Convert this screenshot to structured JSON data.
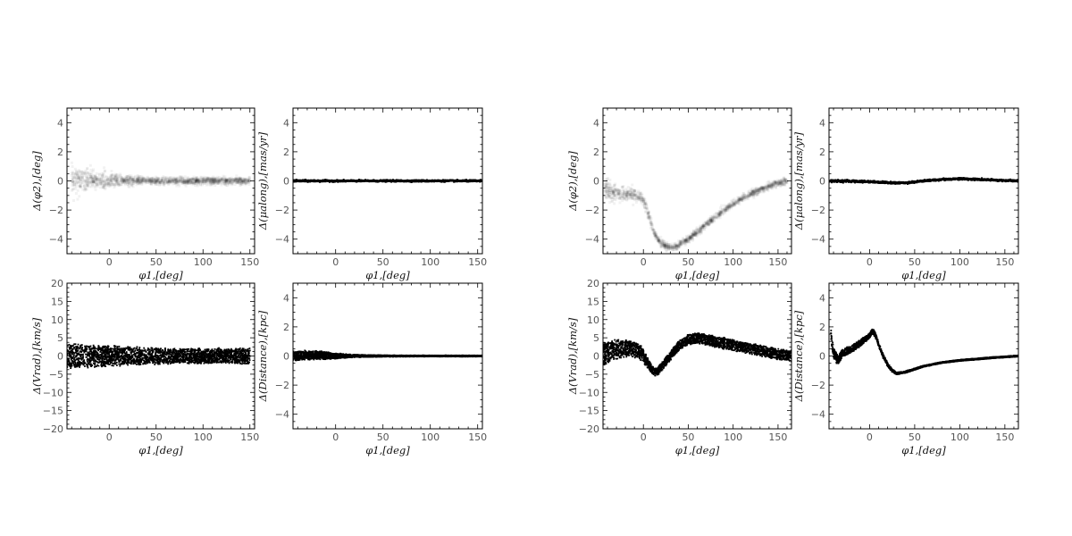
{
  "chart_data": [
    {
      "id": "L-phi2",
      "type": "scatter",
      "xlabel": "φ1,[deg]",
      "ylabel": "Δ(φ2),[deg]",
      "xlim": [
        -45,
        155
      ],
      "ylim": [
        -5,
        5
      ],
      "xticks": [
        0,
        50,
        100,
        150
      ],
      "yticks": [
        -4,
        -2,
        0,
        2,
        4
      ],
      "style": "density",
      "x": [
        -40,
        -30,
        -20,
        -10,
        0,
        10,
        20,
        30,
        40,
        50,
        60,
        70,
        80,
        90,
        100,
        110,
        120,
        130,
        140,
        150
      ],
      "y": [
        0.1,
        0.05,
        0.05,
        0.0,
        0.0,
        0.0,
        0.0,
        0.0,
        0.0,
        0.0,
        0.0,
        0.0,
        0.0,
        0.0,
        0.0,
        0.0,
        0.0,
        0.0,
        0.0,
        0.0
      ],
      "spread": [
        0.7,
        0.65,
        0.55,
        0.5,
        0.45,
        0.35,
        0.3,
        0.25,
        0.2,
        0.2,
        0.2,
        0.2,
        0.2,
        0.2,
        0.2,
        0.2,
        0.2,
        0.2,
        0.2,
        0.2
      ]
    },
    {
      "id": "L-pm",
      "type": "scatter",
      "xlabel": "φ1,[deg]",
      "ylabel": "Δ(μalong),[mas/yr]",
      "xlim": [
        -45,
        155
      ],
      "ylim": [
        -5,
        5
      ],
      "xticks": [
        0,
        50,
        100,
        150
      ],
      "yticks": [
        -4,
        -2,
        0,
        2,
        4
      ],
      "style": "line",
      "x": [
        -45,
        0,
        50,
        100,
        155
      ],
      "y": [
        0,
        0,
        0,
        0,
        0
      ],
      "spread": [
        0.06,
        0.05,
        0.05,
        0.05,
        0.05
      ]
    },
    {
      "id": "L-vrad",
      "type": "scatter",
      "xlabel": "φ1,[deg]",
      "ylabel": "Δ(Vrad),[km/s]",
      "xlim": [
        -45,
        155
      ],
      "ylim": [
        -20,
        20
      ],
      "xticks": [
        0,
        50,
        100,
        150
      ],
      "yticks": [
        -20,
        -15,
        -10,
        -5,
        0,
        5,
        10,
        15,
        20
      ],
      "style": "dots",
      "x": [
        -45,
        -30,
        -15,
        0,
        15,
        30,
        45,
        60,
        75,
        90,
        105,
        120,
        135,
        150
      ],
      "y": [
        0,
        0,
        0,
        0,
        0,
        0,
        0,
        0,
        0,
        0,
        0,
        0,
        0,
        0
      ],
      "spread": [
        3.5,
        3.4,
        3.2,
        3.0,
        2.8,
        2.6,
        2.4,
        2.3,
        2.2,
        2.2,
        2.2,
        2.2,
        2.2,
        2.2
      ]
    },
    {
      "id": "L-dist",
      "type": "scatter",
      "xlabel": "φ1,[deg]",
      "ylabel": "Δ(Distance),[kpc]",
      "xlim": [
        -45,
        155
      ],
      "ylim": [
        -5,
        5
      ],
      "xticks": [
        0,
        50,
        100,
        150
      ],
      "yticks": [
        -4,
        -2,
        0,
        2,
        4
      ],
      "style": "dots",
      "x": [
        -45,
        -30,
        -15,
        0,
        15,
        30,
        50,
        80,
        110,
        155
      ],
      "y": [
        0,
        0.05,
        0.05,
        0,
        0,
        0,
        0,
        0,
        0,
        0
      ],
      "spread": [
        0.35,
        0.35,
        0.3,
        0.2,
        0.12,
        0.08,
        0.06,
        0.05,
        0.05,
        0.05
      ]
    },
    {
      "id": "R-phi2",
      "type": "scatter",
      "xlabel": "φ1,[deg]",
      "ylabel": "Δ(φ2),[deg]",
      "xlim": [
        -45,
        165
      ],
      "ylim": [
        -5,
        5
      ],
      "xticks": [
        0,
        50,
        100,
        150
      ],
      "yticks": [
        -4,
        -2,
        0,
        2,
        4
      ],
      "style": "density",
      "x": [
        -43,
        -35,
        -25,
        -15,
        -5,
        0,
        5,
        10,
        15,
        20,
        25,
        30,
        35,
        40,
        50,
        60,
        70,
        80,
        90,
        100,
        110,
        120,
        130,
        140,
        150,
        160
      ],
      "y": [
        -0.5,
        -0.8,
        -0.9,
        -0.9,
        -1.0,
        -1.3,
        -2.2,
        -3.2,
        -3.9,
        -4.3,
        -4.5,
        -4.6,
        -4.55,
        -4.4,
        -4.0,
        -3.5,
        -3.0,
        -2.5,
        -2.0,
        -1.6,
        -1.2,
        -0.9,
        -0.6,
        -0.35,
        -0.15,
        0.0
      ],
      "spread": [
        0.7,
        0.5,
        0.4,
        0.4,
        0.35,
        0.35,
        0.3,
        0.25,
        0.2,
        0.2,
        0.2,
        0.2,
        0.2,
        0.2,
        0.2,
        0.2,
        0.2,
        0.2,
        0.2,
        0.2,
        0.2,
        0.2,
        0.2,
        0.2,
        0.2,
        0.2
      ]
    },
    {
      "id": "R-pm",
      "type": "scatter",
      "xlabel": "φ1,[deg]",
      "ylabel": "Δ(μalong),[mas/yr]",
      "xlim": [
        -45,
        165
      ],
      "ylim": [
        -5,
        5
      ],
      "xticks": [
        0,
        50,
        100,
        150
      ],
      "yticks": [
        -4,
        -2,
        0,
        2,
        4
      ],
      "style": "line",
      "x": [
        -45,
        -20,
        0,
        15,
        30,
        45,
        60,
        80,
        100,
        120,
        140,
        165
      ],
      "y": [
        0.0,
        -0.02,
        -0.05,
        -0.1,
        -0.15,
        -0.1,
        0.0,
        0.1,
        0.15,
        0.1,
        0.05,
        0.0
      ],
      "spread": [
        0.08,
        0.07,
        0.06,
        0.06,
        0.06,
        0.06,
        0.06,
        0.06,
        0.06,
        0.06,
        0.06,
        0.06
      ]
    },
    {
      "id": "R-vrad",
      "type": "scatter",
      "xlabel": "φ1,[deg]",
      "ylabel": "Δ(Vrad),[km/s]",
      "xlim": [
        -45,
        165
      ],
      "ylim": [
        -20,
        20
      ],
      "xticks": [
        0,
        50,
        100,
        150
      ],
      "yticks": [
        -20,
        -15,
        -10,
        -5,
        0,
        5,
        10,
        15,
        20
      ],
      "style": "dots",
      "x": [
        -45,
        -35,
        -25,
        -15,
        -5,
        0,
        5,
        10,
        15,
        20,
        30,
        40,
        50,
        60,
        70,
        80,
        90,
        100,
        110,
        120,
        130,
        140,
        150,
        165
      ],
      "y": [
        0.5,
        1.5,
        2.0,
        2.0,
        1.5,
        0.0,
        -2.0,
        -4.0,
        -4.5,
        -3.0,
        0.0,
        3.0,
        4.5,
        5.0,
        4.5,
        4.0,
        3.5,
        3.0,
        2.5,
        2.0,
        1.5,
        1.0,
        0.5,
        0.0
      ],
      "spread": [
        3.5,
        3.0,
        2.6,
        2.4,
        2.2,
        2.0,
        1.5,
        1.2,
        1.2,
        1.2,
        1.3,
        1.4,
        1.5,
        1.6,
        1.6,
        1.6,
        1.6,
        1.6,
        1.6,
        1.6,
        1.6,
        1.6,
        1.6,
        1.6
      ]
    },
    {
      "id": "R-dist",
      "type": "scatter",
      "xlabel": "φ1,[deg]",
      "ylabel": "Δ(Distance),[kpc]",
      "xlim": [
        -45,
        165
      ],
      "ylim": [
        -5,
        5
      ],
      "xticks": [
        0,
        50,
        100,
        150
      ],
      "yticks": [
        -4,
        -2,
        0,
        2,
        4
      ],
      "style": "dots",
      "x": [
        -43,
        -40,
        -35,
        -30,
        -20,
        -10,
        0,
        3,
        6,
        10,
        15,
        20,
        25,
        30,
        40,
        50,
        60,
        80,
        100,
        120,
        140,
        165
      ],
      "y": [
        1.5,
        0.2,
        -0.3,
        0.2,
        0.5,
        0.9,
        1.4,
        1.7,
        1.5,
        0.8,
        0.0,
        -0.6,
        -1.0,
        -1.2,
        -1.1,
        -0.9,
        -0.7,
        -0.45,
        -0.3,
        -0.2,
        -0.1,
        0.0
      ],
      "spread": [
        0.5,
        0.4,
        0.35,
        0.3,
        0.25,
        0.25,
        0.2,
        0.2,
        0.2,
        0.15,
        0.15,
        0.12,
        0.1,
        0.08,
        0.07,
        0.06,
        0.05,
        0.05,
        0.05,
        0.05,
        0.05,
        0.05
      ]
    }
  ]
}
